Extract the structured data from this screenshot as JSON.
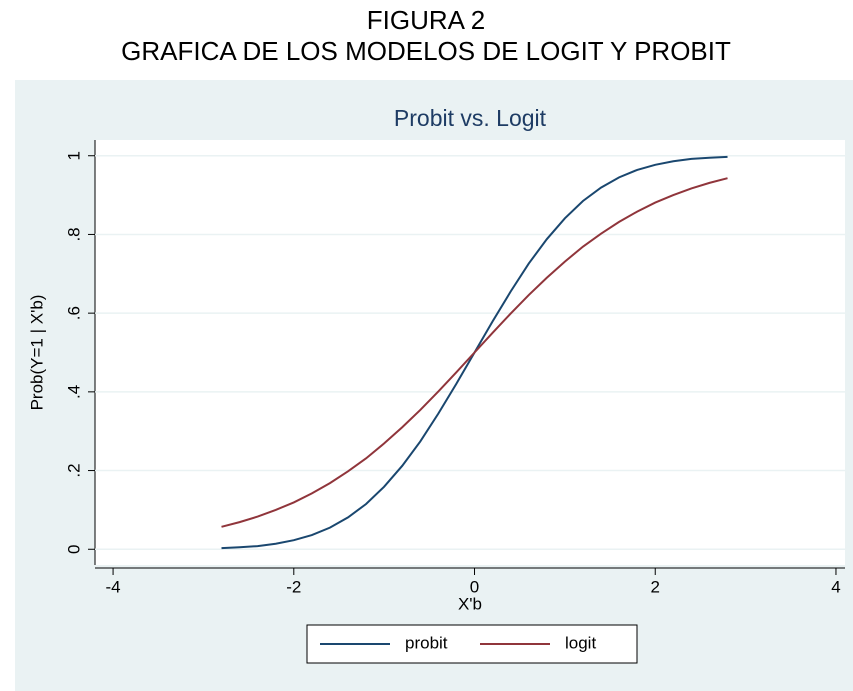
{
  "heading": {
    "line1": "FIGURA 2",
    "line2": "GRAFICA DE LOS MODELOS DE LOGIT Y PROBIT"
  },
  "chart_data": {
    "type": "line",
    "title": "Probit vs. Logit",
    "x_label": "X'b",
    "y_label": "Prob(Y=1 | X'b)",
    "x": [
      -2.8,
      -2.6,
      -2.4,
      -2.2,
      -2.0,
      -1.8,
      -1.6,
      -1.4,
      -1.2,
      -1.0,
      -0.8,
      -0.6,
      -0.4,
      -0.2,
      0,
      0.2,
      0.4,
      0.6,
      0.8,
      1.0,
      1.2,
      1.4,
      1.6,
      1.8,
      2.0,
      2.2,
      2.4,
      2.6,
      2.8
    ],
    "series": [
      {
        "name": "probit",
        "color": "#1a476f",
        "values": [
          0.003,
          0.005,
          0.008,
          0.014,
          0.023,
          0.036,
          0.055,
          0.081,
          0.115,
          0.159,
          0.212,
          0.274,
          0.345,
          0.421,
          0.5,
          0.579,
          0.655,
          0.726,
          0.788,
          0.841,
          0.885,
          0.919,
          0.945,
          0.964,
          0.977,
          0.986,
          0.992,
          0.995,
          0.997
        ]
      },
      {
        "name": "logit",
        "color": "#90353b",
        "values": [
          0.057,
          0.069,
          0.083,
          0.1,
          0.119,
          0.142,
          0.168,
          0.198,
          0.231,
          0.269,
          0.31,
          0.354,
          0.401,
          0.45,
          0.5,
          0.55,
          0.599,
          0.646,
          0.69,
          0.731,
          0.769,
          0.802,
          0.832,
          0.858,
          0.881,
          0.9,
          0.917,
          0.931,
          0.943
        ]
      }
    ],
    "xlim": [
      -4.2,
      4.1
    ],
    "xticks": [
      -4,
      -2,
      0,
      2,
      4
    ],
    "ylim": [
      -0.04,
      1.04
    ],
    "yticks": [
      0,
      {
        "value": 0.2,
        "label": ".2"
      },
      {
        "value": 0.4,
        "label": ".4"
      },
      {
        "value": 0.6,
        "label": ".6"
      },
      {
        "value": 0.8,
        "label": ".8"
      },
      1
    ],
    "grid": true,
    "legend": "bottom"
  }
}
